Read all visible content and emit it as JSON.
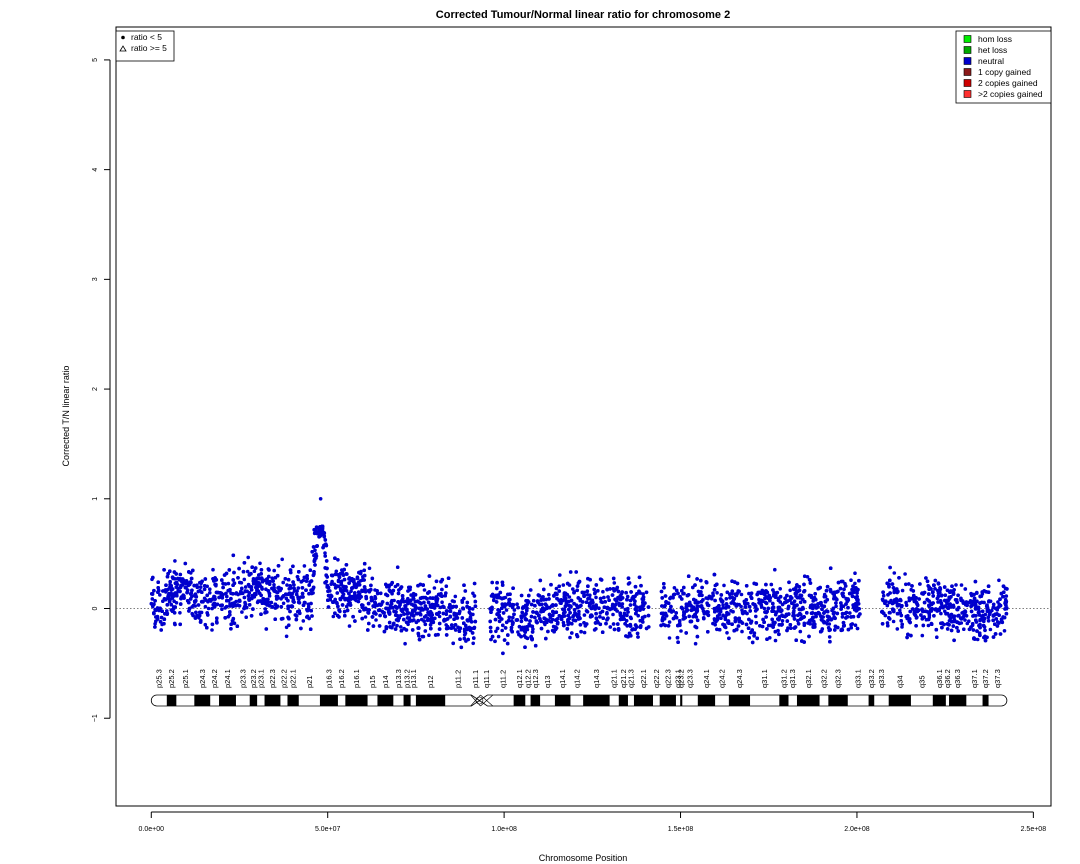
{
  "chart_data": {
    "type": "scatter",
    "title": "Corrected Tumour/Normal linear ratio for chromosome  2",
    "xlabel": "Chromosome Position",
    "ylabel": "Corrected T/N linear ratio",
    "xlim": [
      -10000000,
      255000000
    ],
    "ylim": [
      -1.8,
      5.3
    ],
    "x_ticks": [
      0,
      50000000,
      100000000,
      150000000,
      200000000,
      250000000
    ],
    "x_tick_labels": [
      "0.0e+00",
      "5.0e+07",
      "1.0e+08",
      "1.5e+08",
      "2.0e+08",
      "2.5e+08"
    ],
    "y_ticks": [
      -1,
      0,
      1,
      2,
      3,
      4,
      5
    ],
    "y_tick_labels": [
      "−1",
      "0",
      "1",
      "2",
      "3",
      "4",
      "5"
    ],
    "reference_line_y": 0,
    "point_color": "#0000cd",
    "series": [
      {
        "name": "neutral",
        "marker": "dot",
        "approx_points": [
          [
            0,
            0.05
          ],
          [
            5000000,
            0.1
          ],
          [
            10000000,
            0.15
          ],
          [
            15000000,
            0.05
          ],
          [
            20000000,
            0.1
          ],
          [
            25000000,
            0.15
          ],
          [
            30000000,
            0.2
          ],
          [
            35000000,
            0.1
          ],
          [
            40000000,
            0.1
          ],
          [
            45000000,
            0.1
          ],
          [
            48000000,
            1.0
          ],
          [
            50000000,
            0.15
          ],
          [
            55000000,
            0.2
          ],
          [
            60000000,
            0.1
          ],
          [
            65000000,
            0.05
          ],
          [
            70000000,
            0.0
          ],
          [
            75000000,
            0.0
          ],
          [
            80000000,
            0.0
          ],
          [
            85000000,
            -0.05
          ],
          [
            90000000,
            -0.1
          ],
          [
            100000000,
            0.0
          ],
          [
            105000000,
            -0.05
          ],
          [
            110000000,
            -0.05
          ],
          [
            115000000,
            0.0
          ],
          [
            120000000,
            0.05
          ],
          [
            125000000,
            0.0
          ],
          [
            130000000,
            0.05
          ],
          [
            135000000,
            0.0
          ],
          [
            140000000,
            0.0
          ],
          [
            145000000,
            0.0
          ],
          [
            150000000,
            0.05
          ],
          [
            155000000,
            0.0
          ],
          [
            160000000,
            0.0
          ],
          [
            165000000,
            0.0
          ],
          [
            170000000,
            -0.05
          ],
          [
            175000000,
            0.0
          ],
          [
            180000000,
            0.0
          ],
          [
            185000000,
            0.0
          ],
          [
            190000000,
            0.0
          ],
          [
            195000000,
            0.0
          ],
          [
            200000000,
            0.05
          ],
          [
            205000000,
            0.05
          ],
          [
            210000000,
            0.05
          ],
          [
            215000000,
            0.05
          ],
          [
            220000000,
            0.05
          ],
          [
            225000000,
            0.0
          ],
          [
            230000000,
            0.0
          ],
          [
            235000000,
            -0.05
          ],
          [
            240000000,
            0.0
          ],
          [
            242000000,
            0.0
          ]
        ]
      }
    ],
    "gaps": [
      [
        92000000,
        96000000
      ],
      [
        141000000,
        144500000
      ],
      [
        201000000,
        207000000
      ]
    ],
    "centromere": 93000000,
    "chrom_length": 242500000,
    "legend_markers": [
      {
        "symbol": "dot",
        "label": "ratio < 5"
      },
      {
        "symbol": "triangle",
        "label": "ratio >= 5"
      }
    ],
    "legend_marker_position": "top-left",
    "legend_states": [
      {
        "label": "hom loss",
        "color": "#00ee00"
      },
      {
        "label": "het loss",
        "color": "#00aa00"
      },
      {
        "label": "neutral",
        "color": "#0000cd"
      },
      {
        "label": "1 copy gained",
        "color": "#8b1a1a"
      },
      {
        "label": "2 copies gained",
        "color": "#cd0000"
      },
      {
        "label": ">2 copies gained",
        "color": "#ff3030"
      }
    ],
    "legend_states_position": "top-right",
    "bands": [
      {
        "name": "p25.3",
        "s": 0,
        "e": 4400000,
        "g": "w"
      },
      {
        "name": "p25.2",
        "s": 4400000,
        "e": 7100000,
        "g": "k"
      },
      {
        "name": "p25.1",
        "s": 7100000,
        "e": 12200000,
        "g": "w"
      },
      {
        "name": "p24.3",
        "s": 12200000,
        "e": 16700000,
        "g": "k"
      },
      {
        "name": "p24.2",
        "s": 16700000,
        "e": 19200000,
        "g": "w"
      },
      {
        "name": "p24.1",
        "s": 19200000,
        "e": 24000000,
        "g": "k"
      },
      {
        "name": "p23.3",
        "s": 24000000,
        "e": 27900000,
        "g": "w"
      },
      {
        "name": "p23.2",
        "s": 27900000,
        "e": 30000000,
        "g": "k"
      },
      {
        "name": "p23.1",
        "s": 30000000,
        "e": 32100000,
        "g": "w"
      },
      {
        "name": "p22.3",
        "s": 32100000,
        "e": 36600000,
        "g": "k"
      },
      {
        "name": "p22.2",
        "s": 36600000,
        "e": 38600000,
        "g": "w"
      },
      {
        "name": "p22.1",
        "s": 38600000,
        "e": 41800000,
        "g": "k"
      },
      {
        "name": "p21",
        "s": 41800000,
        "e": 47800000,
        "g": "w"
      },
      {
        "name": "p16.3",
        "s": 47800000,
        "e": 52900000,
        "g": "k"
      },
      {
        "name": "p16.2",
        "s": 52900000,
        "e": 55000000,
        "g": "w"
      },
      {
        "name": "p16.1",
        "s": 55000000,
        "e": 61300000,
        "g": "k"
      },
      {
        "name": "p15",
        "s": 61300000,
        "e": 64100000,
        "g": "w"
      },
      {
        "name": "p14",
        "s": 64100000,
        "e": 68600000,
        "g": "k"
      },
      {
        "name": "p13.3",
        "s": 68600000,
        "e": 71500000,
        "g": "w"
      },
      {
        "name": "p13.2",
        "s": 71500000,
        "e": 73500000,
        "g": "k"
      },
      {
        "name": "p13.1",
        "s": 73500000,
        "e": 75000000,
        "g": "w"
      },
      {
        "name": "p12",
        "s": 75000000,
        "e": 83300000,
        "g": "k"
      },
      {
        "name": "p11.2",
        "s": 83300000,
        "e": 90500000,
        "g": "w"
      },
      {
        "name": "p11.1",
        "s": 90500000,
        "e": 93300000,
        "g": "c"
      },
      {
        "name": "q11.1",
        "s": 93300000,
        "e": 96800000,
        "g": "c"
      },
      {
        "name": "q11.2",
        "s": 96800000,
        "e": 102700000,
        "g": "w"
      },
      {
        "name": "q12.1",
        "s": 102700000,
        "e": 106000000,
        "g": "k"
      },
      {
        "name": "q12.2",
        "s": 106000000,
        "e": 107500000,
        "g": "w"
      },
      {
        "name": "q12.3",
        "s": 107500000,
        "e": 110200000,
        "g": "k"
      },
      {
        "name": "q13",
        "s": 110200000,
        "e": 114400000,
        "g": "w"
      },
      {
        "name": "q14.1",
        "s": 114400000,
        "e": 118800000,
        "g": "k"
      },
      {
        "name": "q14.2",
        "s": 118800000,
        "e": 122400000,
        "g": "w"
      },
      {
        "name": "q14.3",
        "s": 122400000,
        "e": 129900000,
        "g": "k"
      },
      {
        "name": "q21.1",
        "s": 129900000,
        "e": 132500000,
        "g": "w"
      },
      {
        "name": "q21.2",
        "s": 132500000,
        "e": 135100000,
        "g": "k"
      },
      {
        "name": "q21.3",
        "s": 135100000,
        "e": 136800000,
        "g": "w"
      },
      {
        "name": "q22.1",
        "s": 136800000,
        "e": 142200000,
        "g": "k"
      },
      {
        "name": "q22.2",
        "s": 142200000,
        "e": 144100000,
        "g": "w"
      },
      {
        "name": "q22.3",
        "s": 144100000,
        "e": 148700000,
        "g": "k"
      },
      {
        "name": "q23.1",
        "s": 148700000,
        "e": 149900000,
        "g": "w"
      },
      {
        "name": "q23.2",
        "s": 149900000,
        "e": 150500000,
        "g": "k"
      },
      {
        "name": "q23.3",
        "s": 150500000,
        "e": 154900000,
        "g": "w"
      },
      {
        "name": "q24.1",
        "s": 154900000,
        "e": 159800000,
        "g": "k"
      },
      {
        "name": "q24.2",
        "s": 159800000,
        "e": 163700000,
        "g": "w"
      },
      {
        "name": "q24.3",
        "s": 163700000,
        "e": 169700000,
        "g": "k"
      },
      {
        "name": "q31.1",
        "s": 169700000,
        "e": 178000000,
        "g": "w"
      },
      {
        "name": "q31.2",
        "s": 178000000,
        "e": 180600000,
        "g": "k"
      },
      {
        "name": "q31.3",
        "s": 180600000,
        "e": 183000000,
        "g": "w"
      },
      {
        "name": "q32.1",
        "s": 183000000,
        "e": 189400000,
        "g": "k"
      },
      {
        "name": "q32.2",
        "s": 189400000,
        "e": 191900000,
        "g": "w"
      },
      {
        "name": "q32.3",
        "s": 191900000,
        "e": 197400000,
        "g": "k"
      },
      {
        "name": "q33.1",
        "s": 197400000,
        "e": 203300000,
        "g": "w"
      },
      {
        "name": "q33.2",
        "s": 203300000,
        "e": 204900000,
        "g": "k"
      },
      {
        "name": "q33.3",
        "s": 204900000,
        "e": 209000000,
        "g": "w"
      },
      {
        "name": "q34",
        "s": 209000000,
        "e": 215300000,
        "g": "k"
      },
      {
        "name": "q35",
        "s": 215300000,
        "e": 221500000,
        "g": "w"
      },
      {
        "name": "q36.1",
        "s": 221500000,
        "e": 225200000,
        "g": "k"
      },
      {
        "name": "q36.2",
        "s": 225200000,
        "e": 226100000,
        "g": "w"
      },
      {
        "name": "q36.3",
        "s": 226100000,
        "e": 231000000,
        "g": "k"
      },
      {
        "name": "q37.1",
        "s": 231000000,
        "e": 235600000,
        "g": "w"
      },
      {
        "name": "q37.2",
        "s": 235600000,
        "e": 237300000,
        "g": "k"
      },
      {
        "name": "q37.3",
        "s": 237300000,
        "e": 242500000,
        "g": "w"
      }
    ]
  }
}
